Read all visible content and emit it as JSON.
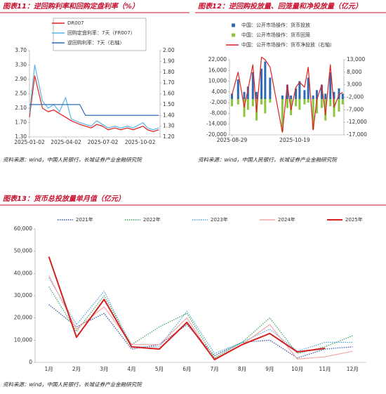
{
  "chart_data": [
    {
      "type": "line",
      "title": "图表11：逆回购利率和回购定盘利率（%）",
      "source": "资料来源：wind，中国人民银行，长城证券产业金融研究院",
      "x": [
        "2025-01-02",
        "2025-01-15",
        "2025-02-03",
        "2025-02-17",
        "2025-03-03",
        "2025-03-17",
        "2025-04-01",
        "2025-04-15",
        "2025-05-06",
        "2025-05-20",
        "2025-06-03",
        "2025-06-17",
        "2025-07-01",
        "2025-07-15",
        "2025-08-01",
        "2025-08-15",
        "2025-09-01",
        "2025-09-15",
        "2025-10-09",
        "2025-10-20",
        "2025-11-03",
        "2025-11-17"
      ],
      "xlim": [
        "2025-01-02",
        "2025-11-20"
      ],
      "xticks": [
        "2025-01-02",
        "2025-04-02",
        "2025-07-02",
        "2025-10-02"
      ],
      "ylim": [
        1.3,
        3.7
      ],
      "yticks": [
        {
          "value": 1.3,
          "label": "1.30"
        },
        {
          "value": 1.7,
          "label": "1.70"
        },
        {
          "value": 2.1,
          "label": "2.10"
        },
        {
          "value": 2.5,
          "label": "2.50"
        },
        {
          "value": 2.9,
          "label": "2.90"
        },
        {
          "value": 3.3,
          "label": "3.30"
        },
        {
          "value": 3.7,
          "label": "3.70"
        }
      ],
      "y2lim": [
        1.2,
        2.0
      ],
      "y2ticks": [
        {
          "value": 1.2,
          "label": "1.20"
        },
        {
          "value": 1.3,
          "label": "1.30"
        },
        {
          "value": 1.4,
          "label": "1.40"
        },
        {
          "value": 1.5,
          "label": "1.50"
        },
        {
          "value": 1.6,
          "label": "1.60"
        },
        {
          "value": 1.7,
          "label": "1.70"
        },
        {
          "value": 1.8,
          "label": "1.80"
        },
        {
          "value": 1.9,
          "label": "1.90"
        },
        {
          "value": 2,
          "label": "2.00"
        }
      ],
      "legend": "top-left",
      "series": [
        {
          "name": "DR007",
          "color": "#e02020",
          "values": [
            1.85,
            3.0,
            2.1,
            2.0,
            2.05,
            1.95,
            1.85,
            1.75,
            1.65,
            1.6,
            1.55,
            1.65,
            1.6,
            1.5,
            1.55,
            1.5,
            1.55,
            1.5,
            1.6,
            1.5,
            1.45,
            1.5
          ]
        },
        {
          "name": "回购定盘利率：7天（FR007）",
          "color": "#5ab4e5",
          "values": [
            1.95,
            3.3,
            2.3,
            2.1,
            2.2,
            2.0,
            2.4,
            1.8,
            1.7,
            1.65,
            1.6,
            1.75,
            1.65,
            1.55,
            1.6,
            1.55,
            1.6,
            1.55,
            1.7,
            1.55,
            1.5,
            1.55
          ]
        },
        {
          "name": "逆回购利率：7天（右轴）",
          "color": "#2e6bb5",
          "axis": "y2",
          "values": [
            1.5,
            1.5,
            1.5,
            1.5,
            1.5,
            1.5,
            1.5,
            1.5,
            1.5,
            1.4,
            1.4,
            1.4,
            1.4,
            1.4,
            1.4,
            1.4,
            1.4,
            1.4,
            1.4,
            1.4,
            1.4,
            1.4
          ]
        }
      ]
    },
    {
      "type": "bar-line",
      "title": "图表12：逆回购投放量、回笼量和净投放量（亿元）",
      "source": "资料来源：wind，中国人民银行，长城证券产业金融研究院",
      "x": [
        "2025-08-29",
        "2025-09-03",
        "2025-09-08",
        "2025-09-11",
        "2025-09-15",
        "2025-09-18",
        "2025-09-22",
        "2025-09-25",
        "2025-09-29",
        "2025-10-09",
        "2025-10-13",
        "2025-10-16",
        "2025-10-20",
        "2025-10-23",
        "2025-10-27",
        "2025-10-30",
        "2025-11-03",
        "2025-11-06",
        "2025-11-10",
        "2025-11-13",
        "2025-11-17",
        "2025-11-20",
        "2025-11-24",
        "2025-11-27"
      ],
      "xlim": [
        "2025-08-27",
        "2025-11-28"
      ],
      "xticks": [
        "2025-08-29",
        "2025-10-19"
      ],
      "ylim": [
        -20000,
        22000
      ],
      "yticks": [
        {
          "value": -20000,
          "label": "-20,000"
        },
        {
          "value": -14000,
          "label": "-14,000"
        },
        {
          "value": -8000,
          "label": "-8,000"
        },
        {
          "value": -2000,
          "label": "-2,000"
        },
        {
          "value": 4000,
          "label": "4,000"
        },
        {
          "value": 10000,
          "label": "10,000"
        },
        {
          "value": 16000,
          "label": "16,000"
        },
        {
          "value": 22000,
          "label": "22,000"
        }
      ],
      "y2lim": [
        -17000,
        13000
      ],
      "y2ticks": [
        {
          "value": -17000,
          "label": "-17,000"
        },
        {
          "value": -12000,
          "label": "-12,000"
        },
        {
          "value": -7000,
          "label": "-7,000"
        },
        {
          "value": -2000,
          "label": "-2,000"
        },
        {
          "value": 3000,
          "label": "3,000"
        },
        {
          "value": 8000,
          "label": "8,000"
        },
        {
          "value": 13000,
          "label": "13,000"
        }
      ],
      "legend": "top-left",
      "series": [
        {
          "name": "中国：公开市场操作：货币投放",
          "color": "#2e6bb5",
          "kind": "bar",
          "values": [
            3000,
            11000,
            4000,
            7000,
            15000,
            4000,
            17000,
            21000,
            12000,
            2000,
            8000,
            2000,
            6000,
            10000,
            5000,
            12000,
            2000,
            5000,
            8000,
            3000,
            15000,
            4000,
            6000,
            3000
          ]
        },
        {
          "name": "中国：公开市场操作：货币回笼",
          "color": "#8cc63f",
          "kind": "bar",
          "values": [
            -4000,
            -3000,
            -10000,
            -6000,
            -4000,
            -12000,
            -3000,
            -8000,
            -2000,
            -18000,
            -5000,
            -9000,
            -4000,
            -6000,
            -3000,
            -2000,
            -17000,
            -8000,
            -5000,
            -12000,
            -4000,
            -10000,
            -7000,
            -3000
          ]
        },
        {
          "name": "中国：公开市场操作：货币净投放（右轴）",
          "color": "#e02020",
          "axis": "y2",
          "values": [
            -1000,
            8000,
            -6000,
            1000,
            11000,
            -8000,
            14000,
            13000,
            10000,
            -16000,
            3000,
            -7000,
            2000,
            4000,
            2000,
            10000,
            -15000,
            -3000,
            3000,
            -9000,
            11000,
            -6000,
            -1000,
            0
          ]
        }
      ]
    },
    {
      "type": "line",
      "title": "图表13：货币总投放量单月值（亿元）",
      "source": "资料来源：wind，中国人民银行，长城证券产业金融研究院",
      "categories": [
        "1月",
        "2月",
        "3月",
        "4月",
        "5月",
        "6月",
        "7月",
        "8月",
        "9月",
        "10月",
        "11月",
        "12月"
      ],
      "ylim": [
        0,
        60000
      ],
      "yticks": [
        0,
        {
          "value": 10000,
          "label": "10,000"
        },
        {
          "value": 20000,
          "label": "20,000"
        },
        {
          "value": 30000,
          "label": "30,000"
        },
        {
          "value": 40000,
          "label": "40,000"
        },
        {
          "value": 50000,
          "label": "50,000"
        },
        {
          "value": 60000,
          "label": "60,000"
        }
      ],
      "legend": "top",
      "series": [
        {
          "name": "2021年",
          "color": "#2e4f9e",
          "style": "dotted",
          "values": [
            26000,
            16000,
            22000,
            6000,
            8000,
            17000,
            3000,
            9000,
            10000,
            2000,
            6000,
            7000
          ]
        },
        {
          "name": "2022年",
          "color": "#3aa35a",
          "style": "dotted",
          "values": [
            34000,
            14000,
            30000,
            8000,
            16000,
            22000,
            2000,
            9000,
            20000,
            4000,
            7000,
            12000
          ]
        },
        {
          "name": "2023年",
          "color": "#4aa3d8",
          "style": "dotted",
          "values": [
            38000,
            17000,
            32000,
            7000,
            7000,
            23000,
            4000,
            9000,
            15000,
            5000,
            9000,
            9000
          ]
        },
        {
          "name": "2024年",
          "color": "#f2a7a7",
          "style": "solid",
          "values": [
            39000,
            15000,
            25000,
            8000,
            8000,
            20000,
            1000,
            8000,
            17000,
            1500,
            2500,
            5000
          ]
        },
        {
          "name": "2025年",
          "color": "#d42020",
          "style": "solid",
          "width": 2,
          "values": [
            47500,
            11300,
            28300,
            7000,
            6000,
            18000,
            1300,
            8000,
            13000,
            4700,
            6300,
            null
          ]
        }
      ]
    }
  ]
}
